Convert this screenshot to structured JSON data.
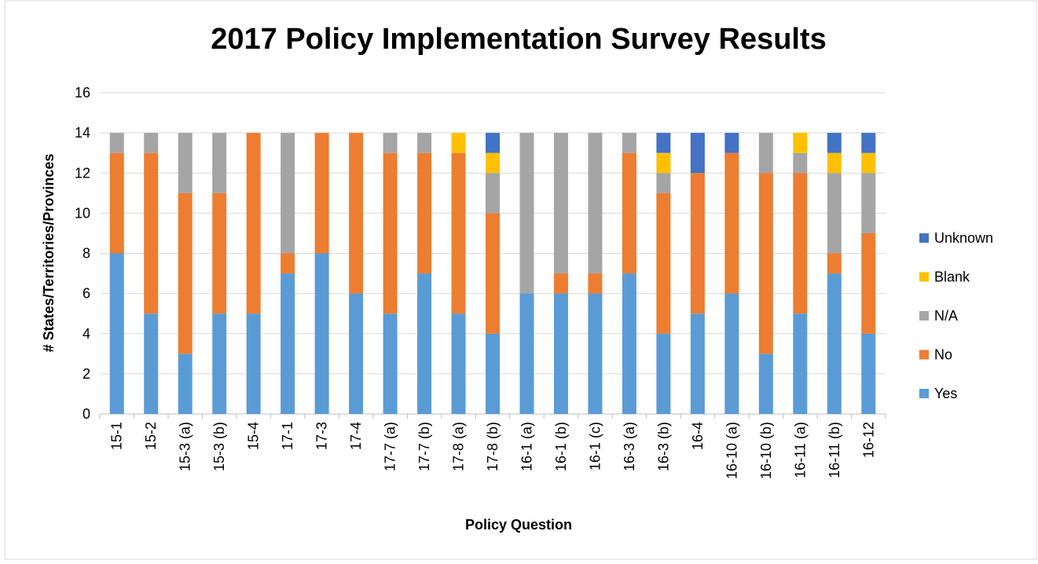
{
  "chart_data": {
    "type": "stacked_bar",
    "title": "2017 Policy Implementation Survey Results",
    "x_label": "Policy Question",
    "y_label": "# States/Territories/Provinces",
    "categories": [
      "15-1",
      "15-2",
      "15-3 (a)",
      "15-3 (b)",
      "15-4",
      "17-1",
      "17-3",
      "17-4",
      "17-7 (a)",
      "17-7 (b)",
      "17-8 (a)",
      "17-8 (b)",
      "16-1 (a)",
      "16-1 (b)",
      "16-1 (c)",
      "16-3 (a)",
      "16-3 (b)",
      "16-4",
      "16-10 (a)",
      "16-10 (b)",
      "16-11 (a)",
      "16-11 (b)",
      "16-12"
    ],
    "series": [
      {
        "name": "Yes",
        "color": "#5b9bd5",
        "values": [
          8,
          5,
          3,
          5,
          5,
          7,
          8,
          6,
          5,
          7,
          5,
          4,
          6,
          6,
          6,
          7,
          4,
          5,
          6,
          3,
          5,
          7,
          4
        ]
      },
      {
        "name": "No",
        "color": "#ed7d31",
        "values": [
          5,
          8,
          8,
          6,
          9,
          1,
          6,
          8,
          8,
          6,
          8,
          6,
          0,
          1,
          1,
          6,
          7,
          7,
          7,
          9,
          7,
          1,
          5
        ]
      },
      {
        "name": "N/A",
        "color": "#a5a5a5",
        "values": [
          1,
          1,
          3,
          3,
          0,
          6,
          0,
          0,
          1,
          1,
          0,
          2,
          8,
          7,
          7,
          1,
          1,
          0,
          0,
          2,
          1,
          4,
          3
        ]
      },
      {
        "name": "Blank",
        "color": "#ffc000",
        "values": [
          0,
          0,
          0,
          0,
          0,
          0,
          0,
          0,
          0,
          0,
          1,
          1,
          0,
          0,
          0,
          0,
          1,
          0,
          0,
          0,
          1,
          1,
          1
        ]
      },
      {
        "name": "Unknown",
        "color": "#4472c4",
        "values": [
          0,
          0,
          0,
          0,
          0,
          0,
          0,
          0,
          0,
          0,
          0,
          1,
          0,
          0,
          0,
          0,
          1,
          2,
          1,
          0,
          0,
          1,
          1
        ]
      }
    ],
    "ylim": [
      0,
      16
    ],
    "yticks": [
      0,
      2,
      4,
      6,
      8,
      10,
      12,
      14,
      16
    ],
    "grid": true,
    "legend": "right"
  }
}
